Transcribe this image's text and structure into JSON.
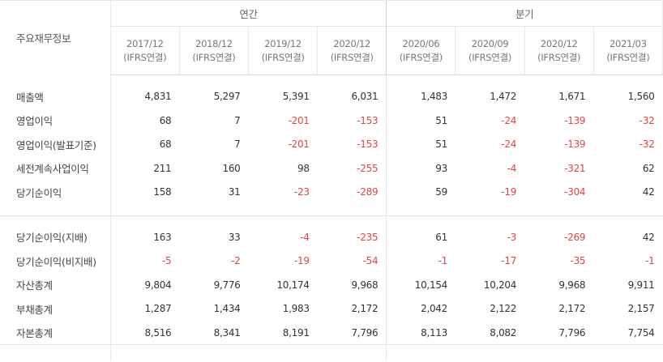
{
  "header": {
    "row_title": "주요재무정보",
    "annual_label": "연간",
    "quarter_label": "분기",
    "periods": [
      {
        "date": "2017/12",
        "basis": "(IFRS연결)"
      },
      {
        "date": "2018/12",
        "basis": "(IFRS연결)"
      },
      {
        "date": "2019/12",
        "basis": "(IFRS연결)"
      },
      {
        "date": "2020/12",
        "basis": "(IFRS연결)"
      },
      {
        "date": "2020/06",
        "basis": "(IFRS연결)"
      },
      {
        "date": "2020/09",
        "basis": "(IFRS연결)"
      },
      {
        "date": "2020/12",
        "basis": "(IFRS연결)"
      },
      {
        "date": "2021/03",
        "basis": "(IFRS연결)"
      }
    ]
  },
  "section1": [
    {
      "label": "매출액",
      "values": [
        "4,831",
        "5,297",
        "5,391",
        "6,031",
        "1,483",
        "1,472",
        "1,671",
        "1,560"
      ]
    },
    {
      "label": "영업이익",
      "values": [
        "68",
        "7",
        "-201",
        "-153",
        "51",
        "-24",
        "-139",
        "-32"
      ]
    },
    {
      "label": "영업이익(발표기준)",
      "values": [
        "68",
        "7",
        "-201",
        "-153",
        "51",
        "-24",
        "-139",
        "-32"
      ]
    },
    {
      "label": "세전계속사업이익",
      "values": [
        "211",
        "160",
        "98",
        "-255",
        "93",
        "-4",
        "-321",
        "62"
      ]
    },
    {
      "label": "당기순이익",
      "values": [
        "158",
        "31",
        "-23",
        "-289",
        "59",
        "-19",
        "-304",
        "42"
      ]
    }
  ],
  "section2": [
    {
      "label": "당기순이익(지배)",
      "values": [
        "163",
        "33",
        "-4",
        "-235",
        "61",
        "-3",
        "-269",
        "42"
      ]
    },
    {
      "label": "당기순이익(비지배)",
      "values": [
        "-5",
        "-2",
        "-19",
        "-54",
        "-1",
        "-17",
        "-35",
        "-1"
      ]
    },
    {
      "label": "자산총계",
      "values": [
        "9,804",
        "9,776",
        "10,174",
        "9,968",
        "10,154",
        "10,204",
        "9,968",
        "9,911"
      ]
    },
    {
      "label": "부채총계",
      "values": [
        "1,287",
        "1,434",
        "1,983",
        "2,172",
        "2,042",
        "2,122",
        "2,172",
        "2,157"
      ]
    },
    {
      "label": "자본총계",
      "values": [
        "8,516",
        "8,341",
        "8,191",
        "7,796",
        "8,113",
        "8,082",
        "7,796",
        "7,754"
      ]
    }
  ],
  "colors": {
    "negative": "#e34444",
    "text": "#333333",
    "border": "#e8e8e8"
  }
}
